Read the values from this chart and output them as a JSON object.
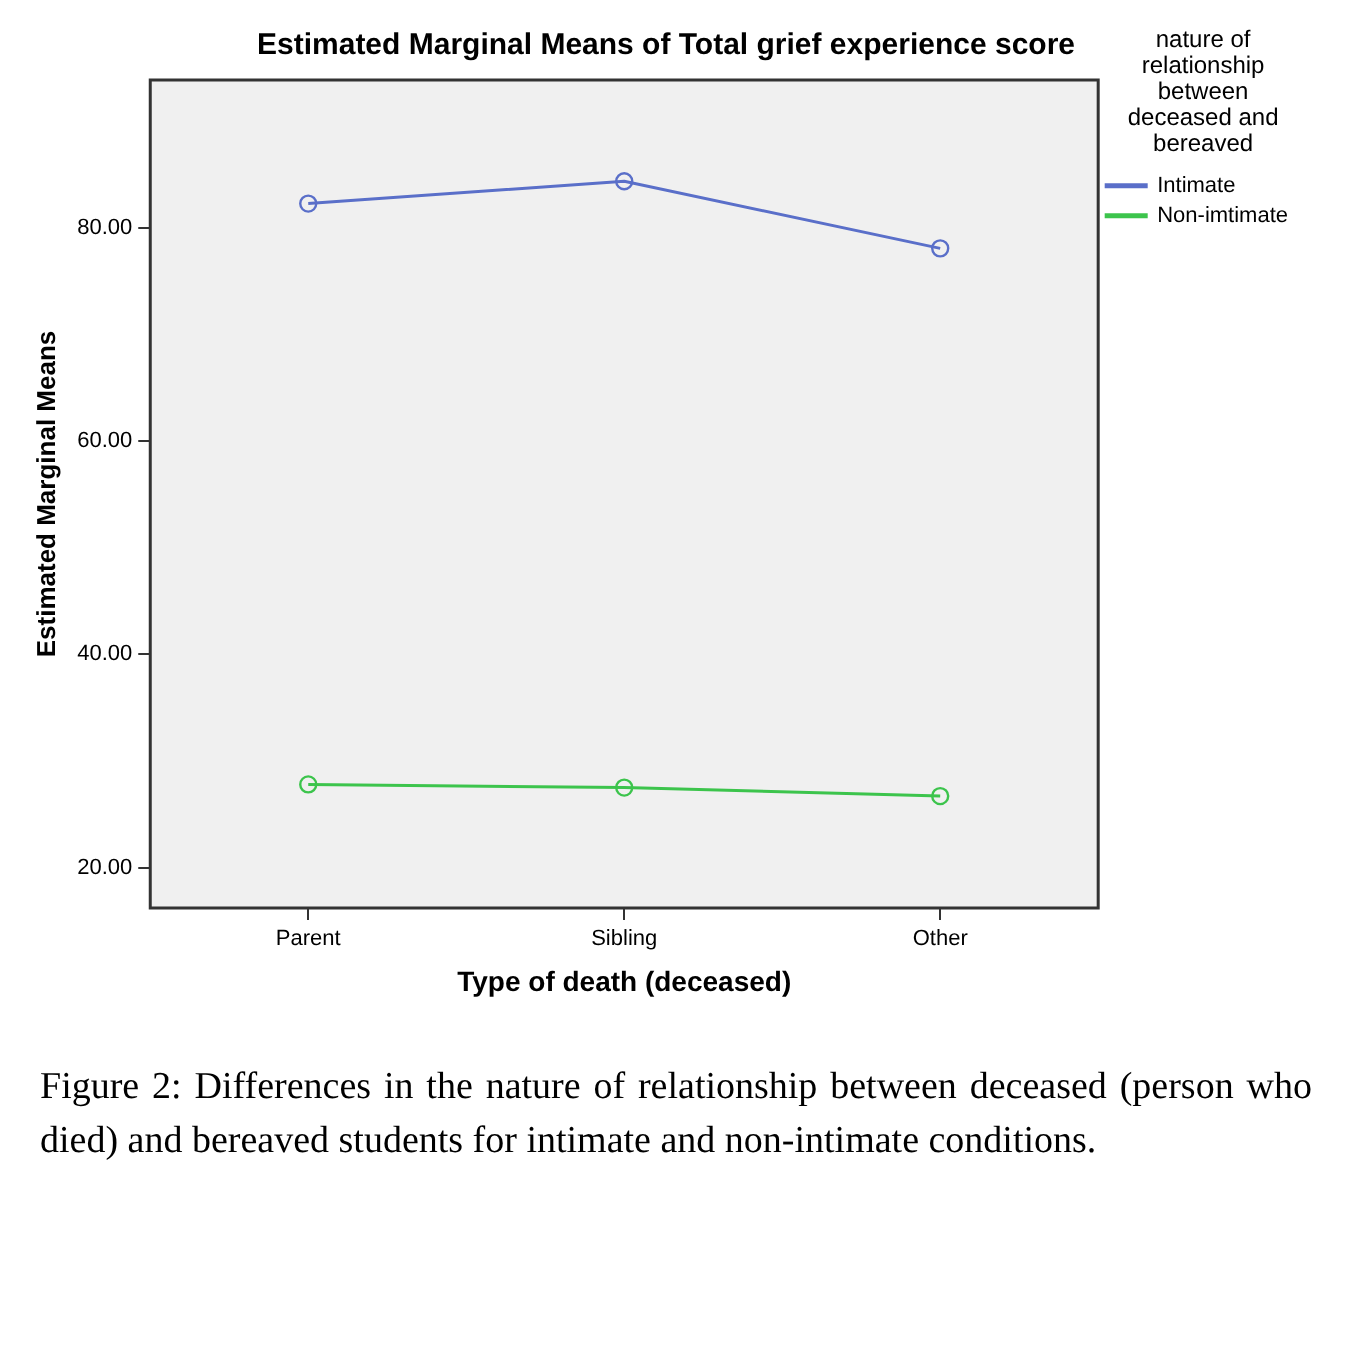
{
  "chart_data": {
    "type": "line",
    "title": "Estimated Marginal Means of Total grief experience score",
    "xlabel": "Type of death (deceased)",
    "ylabel": "Estimated Marginal Means",
    "legend_title": "nature of relationship between deceased and bereaved",
    "categories": [
      "Parent",
      "Sibling",
      "Other"
    ],
    "series": [
      {
        "name": "Intimate",
        "color": "#5a6fc9",
        "values": [
          82.3,
          84.4,
          78.1
        ]
      },
      {
        "name": "Non-imtimate",
        "color": "#3cc44c",
        "values": [
          27.8,
          27.5,
          26.7
        ]
      }
    ],
    "ylim": [
      16.2,
      93.9
    ],
    "yticks": [
      {
        "value": 20,
        "label": "20.00"
      },
      {
        "value": 40,
        "label": "40.00"
      },
      {
        "value": 60,
        "label": "60.00"
      },
      {
        "value": 80,
        "label": "80.00"
      }
    ],
    "grid": false,
    "legend": "right",
    "marker": "circle",
    "line_style": "solid",
    "annotations": [
      "Figure 2: Differences in the nature of relationship between deceased (person who died) and bereaved students for intimate and non-intimate conditions."
    ]
  }
}
